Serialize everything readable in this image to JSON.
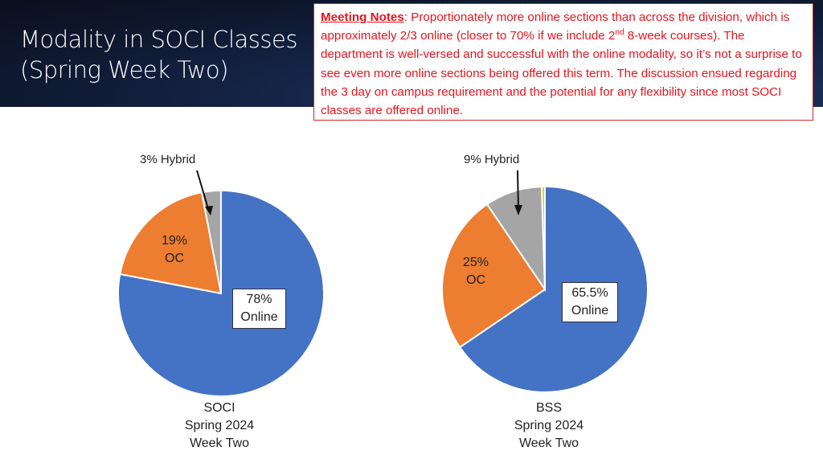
{
  "header": {
    "title_line1": "Modality in SOCI Classes",
    "title_line2": "(Spring Week Two)"
  },
  "notes": {
    "label": "Meeting Notes",
    "text_part1": ":  Proportionately more online sections than across the division, which is approximately 2/3 online (closer to 70% if we include 2",
    "superscript": "nd",
    "text_part2": " 8-week courses). The department is well-versed and successful with the online modality, so it’s not a surprise to see even more online sections being offered this term. The discussion ensued regarding the 3 day on campus requirement and the potential for any flexibility since most SOCI classes are offered online."
  },
  "colors": {
    "online": "#4472c4",
    "oc": "#ed7d31",
    "hybrid": "#a5a5a5",
    "other": "#ffc000",
    "notes_red": "#e8141c"
  },
  "chart_data": [
    {
      "type": "pie",
      "title": "SOCI Spring 2024 Week Two",
      "categories": [
        "Online",
        "OC",
        "Hybrid"
      ],
      "values": [
        78,
        19,
        3
      ],
      "labels": {
        "online_pct": "78%",
        "online_name": "Online",
        "oc_pct": "19%",
        "oc_name": "OC",
        "hybrid": "3% Hybrid"
      },
      "caption": [
        "SOCI",
        "Spring 2024",
        "Week Two"
      ]
    },
    {
      "type": "pie",
      "title": "BSS Spring 2024 Week Two",
      "categories": [
        "Online",
        "OC",
        "Hybrid",
        "Other"
      ],
      "values": [
        65.5,
        25,
        9,
        0.5
      ],
      "labels": {
        "online_pct": "65.5%",
        "online_name": "Online",
        "oc_pct": "25%",
        "oc_name": "OC",
        "hybrid": "9% Hybrid"
      },
      "caption": [
        "BSS",
        "Spring 2024",
        "Week Two"
      ]
    }
  ]
}
